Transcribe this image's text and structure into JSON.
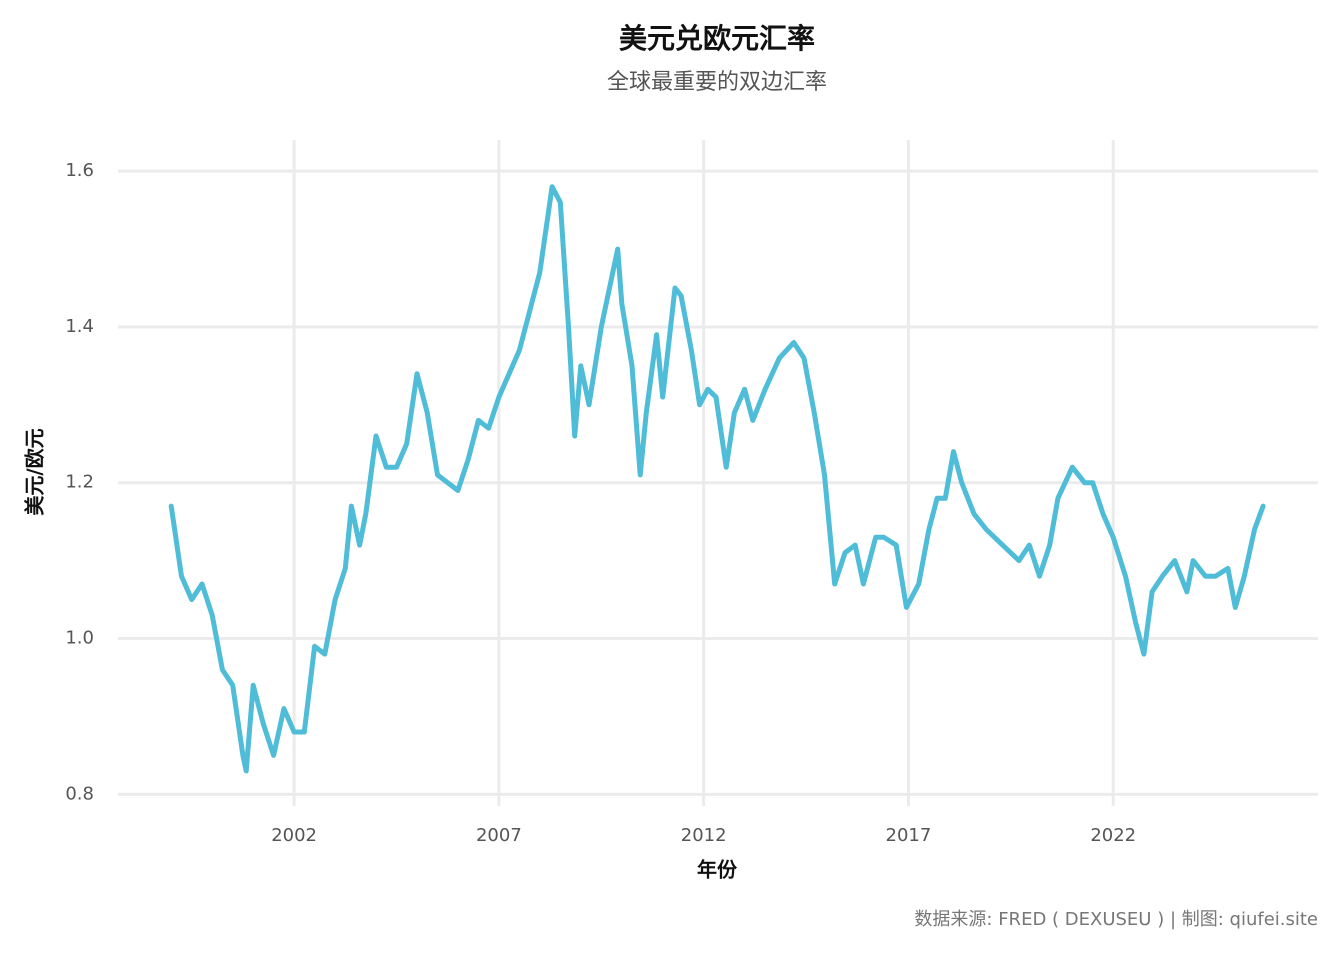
{
  "chart_data": {
    "type": "line",
    "title": "美元兑欧元汇率",
    "subtitle": "全球最重要的双边汇率",
    "x_label": "年份",
    "y_label": "美元/欧元",
    "caption": "数据来源: FRED ( DEXUSEU ) | 制图: qiufei.site",
    "grid": true,
    "xlim": [
      1997.7,
      2027.0
    ],
    "xticks": [
      2002,
      2007,
      2012,
      2017,
      2022
    ],
    "ylim": [
      0.785,
      1.64
    ],
    "yticks": [
      {
        "value": 0.8,
        "label": "0.8"
      },
      {
        "value": 1,
        "label": "1.0"
      },
      {
        "value": 1.2,
        "label": "1.2"
      },
      {
        "value": 1.4,
        "label": "1.4"
      },
      {
        "value": 1.6,
        "label": "1.6"
      }
    ],
    "x": [
      1999.0,
      1999.25,
      1999.5,
      1999.75,
      2000.0,
      2000.25,
      2000.5,
      2000.75,
      2000.83,
      2001.0,
      2001.25,
      2001.5,
      2001.75,
      2002.0,
      2002.25,
      2002.5,
      2002.75,
      2003.0,
      2003.25,
      2003.4,
      2003.6,
      2003.75,
      2004.0,
      2004.25,
      2004.5,
      2004.75,
      2005.0,
      2005.25,
      2005.5,
      2005.75,
      2006.0,
      2006.25,
      2006.5,
      2006.75,
      2007.0,
      2007.25,
      2007.5,
      2007.75,
      2008.0,
      2008.3,
      2008.5,
      2008.7,
      2008.85,
      2009.0,
      2009.2,
      2009.5,
      2009.9,
      2010.0,
      2010.25,
      2010.45,
      2010.6,
      2010.85,
      2011.0,
      2011.3,
      2011.45,
      2011.7,
      2011.9,
      2012.1,
      2012.3,
      2012.55,
      2012.75,
      2013.0,
      2013.2,
      2013.5,
      2013.85,
      2014.2,
      2014.45,
      2014.7,
      2014.95,
      2015.2,
      2015.45,
      2015.7,
      2015.9,
      2016.2,
      2016.4,
      2016.7,
      2016.95,
      2017.25,
      2017.5,
      2017.7,
      2017.9,
      2018.1,
      2018.3,
      2018.6,
      2018.9,
      2019.3,
      2019.7,
      2019.95,
      2020.2,
      2020.45,
      2020.65,
      2021.0,
      2021.3,
      2021.5,
      2021.75,
      2022.0,
      2022.3,
      2022.55,
      2022.75,
      2022.95,
      2023.2,
      2023.5,
      2023.8,
      2023.95,
      2024.25,
      2024.5,
      2024.8,
      2024.98,
      2025.2,
      2025.45,
      2025.66
    ],
    "series": [
      {
        "name": "DEXUSEU",
        "color": "#4fbcd8",
        "values": [
          1.17,
          1.08,
          1.05,
          1.07,
          1.03,
          0.96,
          0.94,
          0.85,
          0.83,
          0.94,
          0.89,
          0.85,
          0.91,
          0.88,
          0.88,
          0.99,
          0.98,
          1.05,
          1.09,
          1.17,
          1.12,
          1.16,
          1.26,
          1.22,
          1.22,
          1.25,
          1.34,
          1.29,
          1.21,
          1.2,
          1.19,
          1.23,
          1.28,
          1.27,
          1.31,
          1.34,
          1.37,
          1.42,
          1.47,
          1.58,
          1.56,
          1.4,
          1.26,
          1.35,
          1.3,
          1.4,
          1.5,
          1.43,
          1.35,
          1.21,
          1.29,
          1.39,
          1.31,
          1.45,
          1.44,
          1.37,
          1.3,
          1.32,
          1.31,
          1.22,
          1.29,
          1.32,
          1.28,
          1.32,
          1.36,
          1.38,
          1.36,
          1.29,
          1.21,
          1.07,
          1.11,
          1.12,
          1.07,
          1.13,
          1.13,
          1.12,
          1.04,
          1.07,
          1.14,
          1.18,
          1.18,
          1.24,
          1.2,
          1.16,
          1.14,
          1.12,
          1.1,
          1.12,
          1.08,
          1.12,
          1.18,
          1.22,
          1.2,
          1.2,
          1.16,
          1.13,
          1.08,
          1.02,
          0.98,
          1.06,
          1.08,
          1.1,
          1.06,
          1.1,
          1.08,
          1.08,
          1.09,
          1.04,
          1.08,
          1.14,
          1.17
        ]
      }
    ]
  }
}
